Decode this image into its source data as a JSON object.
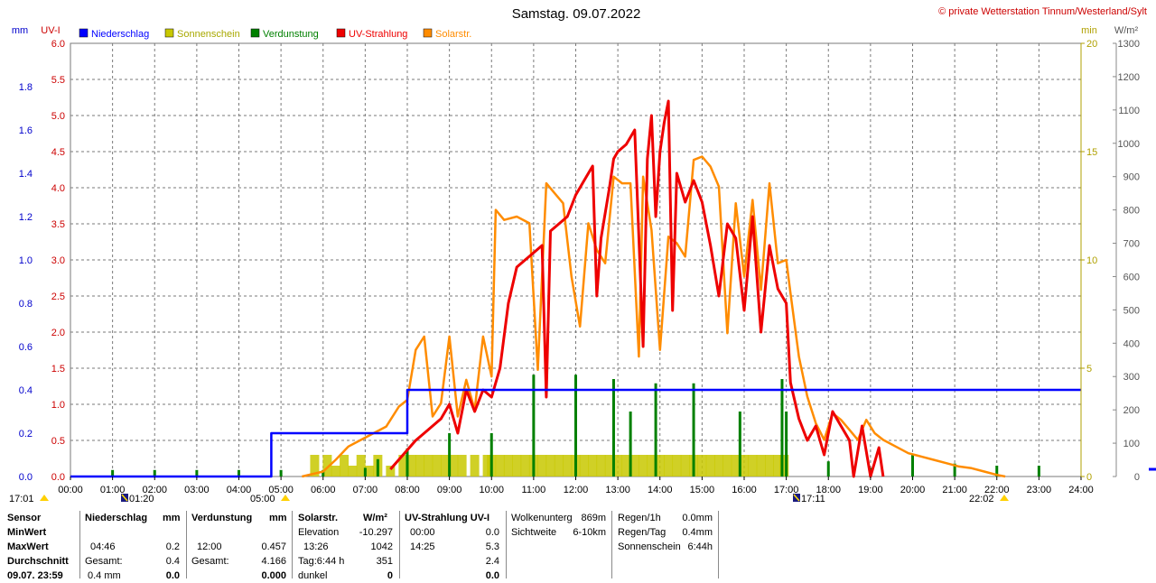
{
  "title": "Samstag. 09.07.2022",
  "credit": "© private Wetterstation Tinnum/Westerland/Sylt",
  "colors": {
    "precip": "#0000ff",
    "sun": "#c8c800",
    "evap": "#008000",
    "uv": "#ee0000",
    "solar": "#ff8c00",
    "grid": "#7a7a7a"
  },
  "chart_data": {
    "type": "line",
    "title": "Samstag. 09.07.2022",
    "x_labels": [
      "00:00",
      "01:00",
      "02:00",
      "03:00",
      "04:00",
      "05:00",
      "06:00",
      "07:00",
      "08:00",
      "09:00",
      "10:00",
      "11:00",
      "12:00",
      "13:00",
      "14:00",
      "15:00",
      "16:00",
      "17:00",
      "18:00",
      "19:00",
      "20:00",
      "21:00",
      "22:00",
      "23:00",
      "24:00"
    ],
    "axes": {
      "mm": {
        "label": "mm",
        "ticks": [
          "0.0",
          "0.2",
          "0.4",
          "0.6",
          "0.8",
          "1.0",
          "1.2",
          "1.4",
          "1.6",
          "1.8"
        ],
        "range": [
          0,
          2.0
        ]
      },
      "uv": {
        "label": "UV-I",
        "ticks": [
          "0.0",
          "0.5",
          "1.0",
          "1.5",
          "2.0",
          "2.5",
          "3.0",
          "3.5",
          "4.0",
          "4.5",
          "5.0",
          "5.5",
          "6.0"
        ],
        "range": [
          0,
          6.0
        ]
      },
      "min": {
        "label": "min",
        "ticks": [
          "0",
          "5",
          "10",
          "15",
          "20"
        ],
        "range": [
          0,
          20
        ]
      },
      "wm2": {
        "label": "W/m²",
        "ticks": [
          "0",
          "100",
          "200",
          "300",
          "400",
          "500",
          "600",
          "700",
          "800",
          "900",
          "1000",
          "1100",
          "1200",
          "1300"
        ],
        "range": [
          0,
          1300
        ]
      }
    },
    "legend": [
      "Niederschlag",
      "Sonnenschein",
      "Verdunstung",
      "UV-Strahlung",
      "Solarstr."
    ],
    "series": [
      {
        "name": "Niederschlag",
        "axis": "mm",
        "points": [
          [
            0,
            0
          ],
          [
            4.77,
            0
          ],
          [
            4.77,
            0.2
          ],
          [
            8.0,
            0.2
          ],
          [
            8.0,
            0.4
          ],
          [
            24,
            0.4
          ]
        ]
      },
      {
        "name": "Solarstr.",
        "axis": "wm2",
        "points": [
          [
            5.5,
            0
          ],
          [
            6.0,
            15
          ],
          [
            6.3,
            50
          ],
          [
            6.6,
            90
          ],
          [
            6.9,
            110
          ],
          [
            7.2,
            130
          ],
          [
            7.5,
            150
          ],
          [
            7.8,
            210
          ],
          [
            8.0,
            230
          ],
          [
            8.2,
            380
          ],
          [
            8.4,
            420
          ],
          [
            8.6,
            180
          ],
          [
            8.8,
            220
          ],
          [
            9.0,
            420
          ],
          [
            9.2,
            180
          ],
          [
            9.4,
            290
          ],
          [
            9.6,
            200
          ],
          [
            9.8,
            420
          ],
          [
            10.0,
            300
          ],
          [
            10.1,
            800
          ],
          [
            10.3,
            770
          ],
          [
            10.6,
            780
          ],
          [
            10.9,
            760
          ],
          [
            11.1,
            320
          ],
          [
            11.3,
            880
          ],
          [
            11.5,
            850
          ],
          [
            11.7,
            820
          ],
          [
            11.9,
            600
          ],
          [
            12.1,
            450
          ],
          [
            12.3,
            760
          ],
          [
            12.5,
            680
          ],
          [
            12.7,
            640
          ],
          [
            12.9,
            900
          ],
          [
            13.1,
            880
          ],
          [
            13.3,
            880
          ],
          [
            13.5,
            360
          ],
          [
            13.6,
            900
          ],
          [
            13.8,
            740
          ],
          [
            14.0,
            380
          ],
          [
            14.2,
            720
          ],
          [
            14.4,
            700
          ],
          [
            14.6,
            660
          ],
          [
            14.8,
            950
          ],
          [
            15.0,
            960
          ],
          [
            15.2,
            930
          ],
          [
            15.4,
            870
          ],
          [
            15.6,
            430
          ],
          [
            15.8,
            820
          ],
          [
            16.0,
            600
          ],
          [
            16.2,
            830
          ],
          [
            16.4,
            560
          ],
          [
            16.6,
            880
          ],
          [
            16.8,
            640
          ],
          [
            17.0,
            650
          ],
          [
            17.1,
            550
          ],
          [
            17.3,
            360
          ],
          [
            17.5,
            240
          ],
          [
            17.7,
            160
          ],
          [
            17.9,
            110
          ],
          [
            18.1,
            190
          ],
          [
            18.3,
            170
          ],
          [
            18.5,
            140
          ],
          [
            18.7,
            110
          ],
          [
            18.9,
            170
          ],
          [
            19.1,
            130
          ],
          [
            19.3,
            110
          ],
          [
            19.6,
            90
          ],
          [
            19.9,
            70
          ],
          [
            20.2,
            60
          ],
          [
            20.5,
            50
          ],
          [
            20.8,
            40
          ],
          [
            21.1,
            30
          ],
          [
            21.4,
            25
          ],
          [
            21.7,
            15
          ],
          [
            22.0,
            5
          ],
          [
            22.2,
            0
          ]
        ]
      },
      {
        "name": "UV-Strahlung",
        "axis": "uv",
        "points": [
          [
            7.6,
            0.1
          ],
          [
            7.9,
            0.3
          ],
          [
            8.2,
            0.5
          ],
          [
            8.4,
            0.6
          ],
          [
            8.6,
            0.7
          ],
          [
            8.8,
            0.8
          ],
          [
            9.0,
            1.0
          ],
          [
            9.2,
            0.6
          ],
          [
            9.4,
            1.2
          ],
          [
            9.6,
            0.9
          ],
          [
            9.8,
            1.2
          ],
          [
            10.0,
            1.1
          ],
          [
            10.2,
            1.5
          ],
          [
            10.4,
            2.4
          ],
          [
            10.6,
            2.9
          ],
          [
            10.8,
            3.0
          ],
          [
            11.0,
            3.1
          ],
          [
            11.2,
            3.2
          ],
          [
            11.3,
            1.1
          ],
          [
            11.4,
            3.4
          ],
          [
            11.6,
            3.5
          ],
          [
            11.8,
            3.6
          ],
          [
            12.0,
            3.9
          ],
          [
            12.2,
            4.1
          ],
          [
            12.4,
            4.3
          ],
          [
            12.5,
            2.5
          ],
          [
            12.6,
            3.3
          ],
          [
            12.8,
            4.0
          ],
          [
            12.9,
            4.4
          ],
          [
            13.0,
            4.5
          ],
          [
            13.2,
            4.6
          ],
          [
            13.4,
            4.8
          ],
          [
            13.6,
            1.8
          ],
          [
            13.7,
            4.4
          ],
          [
            13.8,
            5.0
          ],
          [
            13.9,
            3.6
          ],
          [
            14.0,
            4.5
          ],
          [
            14.1,
            4.9
          ],
          [
            14.2,
            5.2
          ],
          [
            14.3,
            2.3
          ],
          [
            14.4,
            4.2
          ],
          [
            14.6,
            3.8
          ],
          [
            14.8,
            4.1
          ],
          [
            15.0,
            3.8
          ],
          [
            15.2,
            3.2
          ],
          [
            15.4,
            2.5
          ],
          [
            15.6,
            3.5
          ],
          [
            15.8,
            3.3
          ],
          [
            16.0,
            2.3
          ],
          [
            16.2,
            3.6
          ],
          [
            16.4,
            2.0
          ],
          [
            16.6,
            3.2
          ],
          [
            16.8,
            2.6
          ],
          [
            17.0,
            2.4
          ],
          [
            17.1,
            1.3
          ],
          [
            17.3,
            0.8
          ],
          [
            17.5,
            0.5
          ],
          [
            17.7,
            0.7
          ],
          [
            17.9,
            0.3
          ],
          [
            18.1,
            0.9
          ],
          [
            18.3,
            0.7
          ],
          [
            18.5,
            0.5
          ],
          [
            18.6,
            0.0
          ],
          [
            18.8,
            0.7
          ],
          [
            19.0,
            0.0
          ],
          [
            19.2,
            0.4
          ],
          [
            19.3,
            0.0
          ]
        ]
      },
      {
        "name": "Sonnenschein",
        "axis": "min",
        "points": [
          [
            5.8,
            1
          ],
          [
            6.1,
            1
          ],
          [
            6.3,
            0.5
          ],
          [
            6.5,
            1
          ],
          [
            6.7,
            0.5
          ],
          [
            6.9,
            1
          ],
          [
            7.1,
            0.5
          ],
          [
            7.3,
            1
          ],
          [
            7.6,
            0.5
          ],
          [
            7.9,
            1
          ],
          [
            8.1,
            1
          ],
          [
            8.3,
            1
          ],
          [
            8.5,
            1
          ],
          [
            8.7,
            1
          ],
          [
            8.9,
            1
          ],
          [
            9.1,
            1
          ],
          [
            9.3,
            1
          ],
          [
            9.6,
            1
          ],
          [
            9.9,
            1
          ],
          [
            10.0,
            1
          ],
          [
            10.2,
            1
          ],
          [
            10.4,
            1
          ],
          [
            10.6,
            1
          ],
          [
            10.8,
            1
          ],
          [
            11.0,
            1
          ],
          [
            11.2,
            1
          ],
          [
            11.4,
            1
          ],
          [
            11.6,
            1
          ],
          [
            11.8,
            1
          ],
          [
            12.0,
            1
          ],
          [
            12.2,
            1
          ],
          [
            12.4,
            1
          ],
          [
            12.6,
            1
          ],
          [
            12.8,
            1
          ],
          [
            13.0,
            1
          ],
          [
            13.2,
            1
          ],
          [
            13.4,
            1
          ],
          [
            13.6,
            1
          ],
          [
            13.8,
            1
          ],
          [
            14.0,
            1
          ],
          [
            14.2,
            1
          ],
          [
            14.4,
            1
          ],
          [
            14.6,
            1
          ],
          [
            14.8,
            1
          ],
          [
            15.0,
            1
          ],
          [
            15.2,
            1
          ],
          [
            15.4,
            1
          ],
          [
            15.6,
            1
          ],
          [
            15.8,
            1
          ],
          [
            16.0,
            1
          ],
          [
            16.2,
            1
          ],
          [
            16.4,
            1
          ],
          [
            16.6,
            1
          ],
          [
            16.8,
            1
          ],
          [
            16.95,
            1
          ]
        ]
      },
      {
        "name": "Verdunstung",
        "axis": "min",
        "points": [
          [
            1.0,
            0.3
          ],
          [
            2.0,
            0.3
          ],
          [
            3.0,
            0.3
          ],
          [
            4.0,
            0.3
          ],
          [
            5.0,
            0.3
          ],
          [
            6.0,
            0.3
          ],
          [
            7.0,
            0.4
          ],
          [
            7.3,
            0.8
          ],
          [
            8.0,
            1.3
          ],
          [
            9.0,
            2.0
          ],
          [
            10.0,
            2.0
          ],
          [
            11.0,
            4.7
          ],
          [
            12.0,
            4.7
          ],
          [
            12.9,
            4.5
          ],
          [
            13.3,
            3.0
          ],
          [
            13.9,
            4.3
          ],
          [
            14.8,
            4.3
          ],
          [
            15.9,
            3.0
          ],
          [
            16.9,
            4.5
          ],
          [
            17.0,
            3.0
          ],
          [
            18.0,
            0.7
          ],
          [
            19.0,
            0.4
          ],
          [
            20.0,
            1.0
          ],
          [
            21.0,
            0.6
          ],
          [
            22.0,
            0.5
          ],
          [
            23.0,
            0.5
          ]
        ]
      }
    ]
  },
  "sun_markers": [
    {
      "label": "17:01",
      "kind": "sunset-prev"
    },
    {
      "label": "01:20",
      "kind": "moonset"
    },
    {
      "label": "05:00",
      "kind": "sunrise"
    },
    {
      "label": "17:11",
      "kind": "moonrise"
    },
    {
      "label": "22:02",
      "kind": "sunset"
    }
  ],
  "stats": {
    "labels": {
      "sensor": "Sensor",
      "min": "MinWert",
      "max": "MaxWert",
      "avg": "Durchschnitt",
      "date": "09.07. 23:59"
    },
    "precip": {
      "h": "Niederschlag",
      "u": "mm",
      "max_t": "04:46",
      "max_v": "0.2",
      "gesamt_l": "Gesamt:",
      "gesamt_v": "0.4",
      "r4_t": "0.4 mm",
      "r4_v": "0.0"
    },
    "evap": {
      "h": "Verdunstung",
      "u": "mm",
      "max_t": "12:00",
      "max_v": "0.457",
      "gesamt_l": "Gesamt:",
      "gesamt_v": "4.166",
      "r4_v": "0.000"
    },
    "solar": {
      "h": "Solarstr.",
      "u": "W/m²",
      "elev_l": "Elevation",
      "elev_v": "-10.297",
      "max_t": "13:26",
      "max_v": "1042",
      "tag_l": "Tag:6:44 h",
      "tag_v": "351",
      "dunkel_l": "dunkel",
      "dunkel_v": "0"
    },
    "uv": {
      "h": "UV-Strahlung UV-I",
      "min_t": "00:00",
      "min_v": "0.0",
      "max_t": "14:25",
      "max_v": "5.3",
      "avg_v": "2.4",
      "r4_v": "0.0"
    },
    "cloud": {
      "l1": "Wolkenunterg",
      "v1": "869m",
      "l2": "Sichtweite",
      "v2": "6-10km"
    },
    "rain": {
      "l1": "Regen/1h",
      "v1": "0.0mm",
      "l2": "Regen/Tag",
      "v2": "0.4mm",
      "l3": "Sonnenschein",
      "v3": "6:44h"
    }
  }
}
